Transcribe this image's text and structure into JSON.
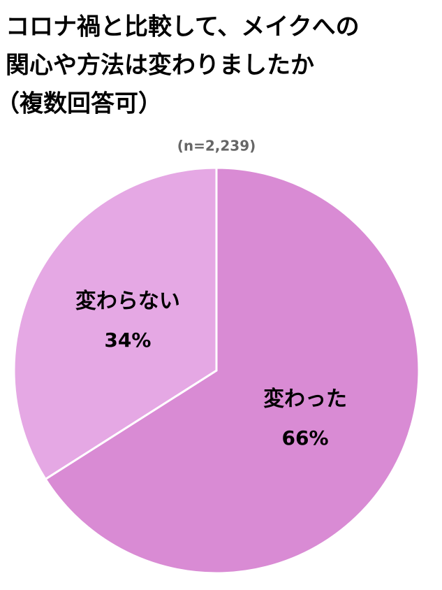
{
  "chart_data": {
    "type": "pie",
    "title": [
      "コロナ禍と比較して、メイクへの",
      "関心や方法は変わりましたか",
      "（複数回答可）"
    ],
    "subtitle": "(n=2,239)",
    "categories": [
      "変わった",
      "変わらない"
    ],
    "values": [
      66,
      34
    ],
    "value_labels": [
      "66%",
      "34%"
    ],
    "colors": [
      "#d98bd4",
      "#e5a8e4"
    ]
  }
}
